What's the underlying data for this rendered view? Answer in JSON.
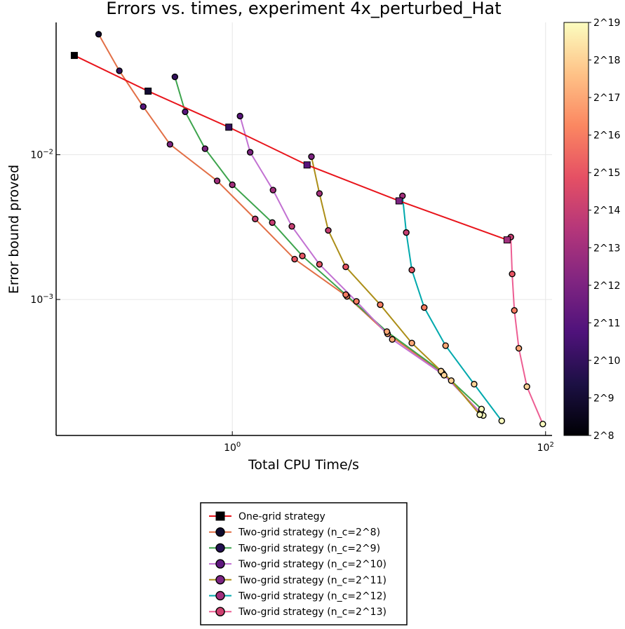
{
  "chart_data": {
    "type": "scatter",
    "title": "Errors vs. times, experiment 4x_perturbed_Hat",
    "xlabel": "Total CPU Time/s",
    "ylabel": "Error bound proved",
    "x_scale": "log10",
    "y_scale": "log10",
    "xlim": [
      0.075,
      110
    ],
    "ylim": [
      0.000115,
      0.082
    ],
    "x_ticks": [
      {
        "value": 1,
        "base": "10",
        "exp": "0"
      },
      {
        "value": 100,
        "base": "10",
        "exp": "2"
      }
    ],
    "y_ticks": [
      {
        "value": 0.001,
        "base": "10",
        "exp": "−3"
      },
      {
        "value": 0.01,
        "base": "10",
        "exp": "−2"
      }
    ],
    "grid": true,
    "legend_position": "bottom-center",
    "colorbar": {
      "colormap": "magma",
      "min_exp": 8,
      "max_exp": 19,
      "labels": [
        "2^8",
        "2^9",
        "2^10",
        "2^11",
        "2^12",
        "2^13",
        "2^14",
        "2^15",
        "2^16",
        "2^17",
        "2^18",
        "2^19"
      ]
    },
    "series": [
      {
        "name": "One-grid strategy",
        "line_color": "#e8141b",
        "marker": "square",
        "points": [
          {
            "x": 0.098,
            "y": 0.0485,
            "n_exp": 8
          },
          {
            "x": 0.29,
            "y": 0.0275,
            "n_exp": 9
          },
          {
            "x": 0.95,
            "y": 0.0155,
            "n_exp": 10
          },
          {
            "x": 3.0,
            "y": 0.0085,
            "n_exp": 11
          },
          {
            "x": 11.6,
            "y": 0.0048,
            "n_exp": 12
          },
          {
            "x": 56.8,
            "y": 0.00258,
            "n_exp": 13
          }
        ]
      },
      {
        "name": "Two-grid strategy (n_c=2^8)",
        "line_color": "#e26f46",
        "marker": "circle",
        "points": [
          {
            "x": 0.14,
            "y": 0.068,
            "n_exp": 9
          },
          {
            "x": 0.19,
            "y": 0.038,
            "n_exp": 10
          },
          {
            "x": 0.27,
            "y": 0.0215,
            "n_exp": 11
          },
          {
            "x": 0.4,
            "y": 0.0118,
            "n_exp": 12
          },
          {
            "x": 0.8,
            "y": 0.0066,
            "n_exp": 13
          },
          {
            "x": 1.4,
            "y": 0.0036,
            "n_exp": 14
          },
          {
            "x": 2.5,
            "y": 0.0019,
            "n_exp": 15
          },
          {
            "x": 5.4,
            "y": 0.00105,
            "n_exp": 16
          },
          {
            "x": 9.8,
            "y": 0.00058,
            "n_exp": 17
          },
          {
            "x": 22.0,
            "y": 0.00031,
            "n_exp": 18
          },
          {
            "x": 38.5,
            "y": 0.000165,
            "n_exp": 19
          }
        ]
      },
      {
        "name": "Two-grid strategy (n_c=2^9)",
        "line_color": "#3da44d",
        "marker": "circle",
        "points": [
          {
            "x": 0.43,
            "y": 0.0345,
            "n_exp": 10
          },
          {
            "x": 0.5,
            "y": 0.0198,
            "n_exp": 11
          },
          {
            "x": 0.67,
            "y": 0.011,
            "n_exp": 12
          },
          {
            "x": 1.0,
            "y": 0.0062,
            "n_exp": 13
          },
          {
            "x": 1.8,
            "y": 0.0034,
            "n_exp": 14
          },
          {
            "x": 2.8,
            "y": 0.002,
            "n_exp": 15
          },
          {
            "x": 5.3,
            "y": 0.00108,
            "n_exp": 16
          },
          {
            "x": 9.7,
            "y": 0.0006,
            "n_exp": 17
          },
          {
            "x": 21.5,
            "y": 0.00032,
            "n_exp": 18
          },
          {
            "x": 39.0,
            "y": 0.000175,
            "n_exp": 19
          }
        ]
      },
      {
        "name": "Two-grid strategy (n_c=2^10)",
        "line_color": "#c271d2",
        "marker": "circle",
        "points": [
          {
            "x": 1.12,
            "y": 0.0185,
            "n_exp": 11
          },
          {
            "x": 1.3,
            "y": 0.0104,
            "n_exp": 12
          },
          {
            "x": 1.82,
            "y": 0.0057,
            "n_exp": 13
          },
          {
            "x": 2.4,
            "y": 0.0032,
            "n_exp": 14
          },
          {
            "x": 3.6,
            "y": 0.00175,
            "n_exp": 15
          },
          {
            "x": 6.2,
            "y": 0.00097,
            "n_exp": 16
          },
          {
            "x": 10.5,
            "y": 0.00053,
            "n_exp": 17
          },
          {
            "x": 22.5,
            "y": 0.0003,
            "n_exp": 18
          },
          {
            "x": 40.0,
            "y": 0.000158,
            "n_exp": 19
          }
        ]
      },
      {
        "name": "Two-grid strategy (n_c=2^11)",
        "line_color": "#ac8e18",
        "marker": "circle",
        "points": [
          {
            "x": 3.2,
            "y": 0.0097,
            "n_exp": 12
          },
          {
            "x": 3.6,
            "y": 0.0054,
            "n_exp": 13
          },
          {
            "x": 4.1,
            "y": 0.003,
            "n_exp": 14
          },
          {
            "x": 5.3,
            "y": 0.00168,
            "n_exp": 15
          },
          {
            "x": 8.8,
            "y": 0.00092,
            "n_exp": 16
          },
          {
            "x": 14.0,
            "y": 0.0005,
            "n_exp": 17
          },
          {
            "x": 25.0,
            "y": 0.000275,
            "n_exp": 18
          },
          {
            "x": 38.0,
            "y": 0.00016,
            "n_exp": 19
          }
        ]
      },
      {
        "name": "Two-grid strategy (n_c=2^12)",
        "line_color": "#00a9ad",
        "marker": "circle",
        "points": [
          {
            "x": 12.2,
            "y": 0.0052,
            "n_exp": 13
          },
          {
            "x": 12.9,
            "y": 0.0029,
            "n_exp": 14
          },
          {
            "x": 14.0,
            "y": 0.0016,
            "n_exp": 15
          },
          {
            "x": 16.8,
            "y": 0.00088,
            "n_exp": 16
          },
          {
            "x": 23.0,
            "y": 0.00048,
            "n_exp": 17
          },
          {
            "x": 35.0,
            "y": 0.00026,
            "n_exp": 18
          },
          {
            "x": 52.5,
            "y": 0.000145,
            "n_exp": 19
          }
        ]
      },
      {
        "name": "Two-grid strategy (n_c=2^13)",
        "line_color": "#ed5e93",
        "marker": "circle",
        "points": [
          {
            "x": 60.0,
            "y": 0.0027,
            "n_exp": 14
          },
          {
            "x": 61.2,
            "y": 0.0015,
            "n_exp": 15
          },
          {
            "x": 63.2,
            "y": 0.00084,
            "n_exp": 16
          },
          {
            "x": 67.5,
            "y": 0.00046,
            "n_exp": 17
          },
          {
            "x": 76.0,
            "y": 0.00025,
            "n_exp": 18
          },
          {
            "x": 96.0,
            "y": 0.000138,
            "n_exp": 19
          }
        ]
      }
    ]
  }
}
